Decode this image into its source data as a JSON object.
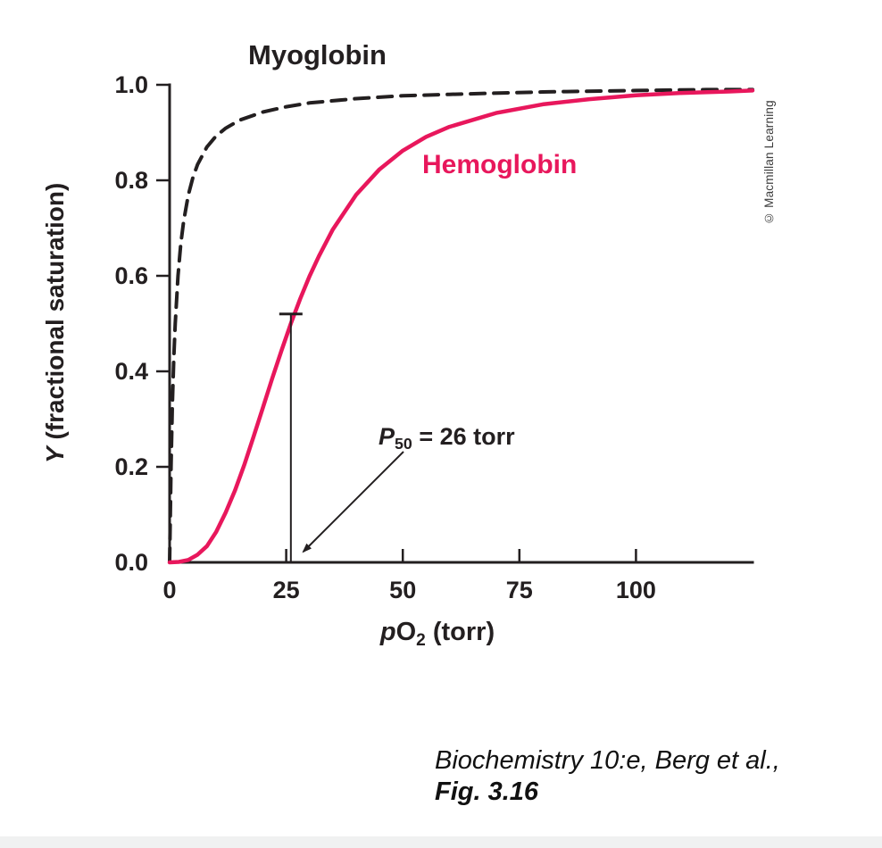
{
  "labels": {
    "myoglobin": "Myoglobin",
    "hemoglobin": "Hemoglobin",
    "p50_symbol": "P",
    "p50_sub": "50",
    "p50_rest": " = 26 torr",
    "copyright": "© Macmillan Learning",
    "caption_line1": "Biochemistry 10:e, Berg et al.,",
    "caption_line2": "Fig. 3.16"
  },
  "axes": {
    "y_label_italic": "Y",
    "y_label_rest": " (fractional saturation)",
    "x_label_p": "p",
    "x_label_O": "O",
    "x_label_sub": "2",
    "x_label_rest": " (torr)"
  },
  "colors": {
    "axis": "#231f20",
    "myoglobin": "#231f20",
    "hemoglobin": "#e8175c"
  },
  "chart_data": {
    "type": "line",
    "title": "Oxygen-binding curves of myoglobin and hemoglobin",
    "xlabel": "pO2 (torr)",
    "ylabel": "Y (fractional saturation)",
    "xlim": [
      0,
      125
    ],
    "ylim": [
      0,
      1.0
    ],
    "grid": false,
    "legend_position": "inline-labels",
    "x_ticks": [
      {
        "v": 0,
        "label": "0"
      },
      {
        "v": 25,
        "label": "25"
      },
      {
        "v": 50,
        "label": "50"
      },
      {
        "v": 75,
        "label": "75"
      },
      {
        "v": 100,
        "label": "100"
      }
    ],
    "y_ticks": [
      {
        "v": 0.0,
        "label": "0.0"
      },
      {
        "v": 0.2,
        "label": "0.2"
      },
      {
        "v": 0.4,
        "label": "0.4"
      },
      {
        "v": 0.6,
        "label": "0.6"
      },
      {
        "v": 0.8,
        "label": "0.8"
      },
      {
        "v": 1.0,
        "label": "1.0"
      }
    ],
    "annotation": {
      "text": "P50 = 26 torr",
      "x": 26,
      "y_top": 0.52
    },
    "series": [
      {
        "name": "Myoglobin",
        "color": "#231f20",
        "style": "dashed",
        "points": [
          [
            0,
            0
          ],
          [
            0.3,
            0.2
          ],
          [
            0.6,
            0.333
          ],
          [
            0.9,
            0.429
          ],
          [
            1.2,
            0.5
          ],
          [
            1.8,
            0.6
          ],
          [
            2.4,
            0.667
          ],
          [
            3,
            0.714
          ],
          [
            4,
            0.769
          ],
          [
            5,
            0.806
          ],
          [
            6,
            0.833
          ],
          [
            8,
            0.87
          ],
          [
            10,
            0.893
          ],
          [
            12,
            0.909
          ],
          [
            15,
            0.926
          ],
          [
            20,
            0.943
          ],
          [
            25,
            0.954
          ],
          [
            30,
            0.962
          ],
          [
            40,
            0.971
          ],
          [
            50,
            0.977
          ],
          [
            60,
            0.98
          ],
          [
            80,
            0.985
          ],
          [
            100,
            0.988
          ],
          [
            115,
            0.99
          ],
          [
            125,
            0.99
          ]
        ]
      },
      {
        "name": "Hemoglobin",
        "color": "#e8175c",
        "style": "solid",
        "points": [
          [
            0,
            0
          ],
          [
            2,
            0.001
          ],
          [
            4,
            0.005
          ],
          [
            6,
            0.016
          ],
          [
            8,
            0.034
          ],
          [
            10,
            0.064
          ],
          [
            12,
            0.104
          ],
          [
            14,
            0.15
          ],
          [
            16,
            0.204
          ],
          [
            18,
            0.263
          ],
          [
            20,
            0.324
          ],
          [
            22,
            0.385
          ],
          [
            24,
            0.444
          ],
          [
            26,
            0.5
          ],
          [
            28,
            0.552
          ],
          [
            30,
            0.599
          ],
          [
            32,
            0.641
          ],
          [
            35,
            0.697
          ],
          [
            40,
            0.77
          ],
          [
            45,
            0.823
          ],
          [
            50,
            0.862
          ],
          [
            55,
            0.891
          ],
          [
            60,
            0.912
          ],
          [
            70,
            0.941
          ],
          [
            80,
            0.959
          ],
          [
            90,
            0.97
          ],
          [
            100,
            0.978
          ],
          [
            110,
            0.983
          ],
          [
            120,
            0.986
          ],
          [
            125,
            0.988
          ]
        ]
      }
    ]
  }
}
